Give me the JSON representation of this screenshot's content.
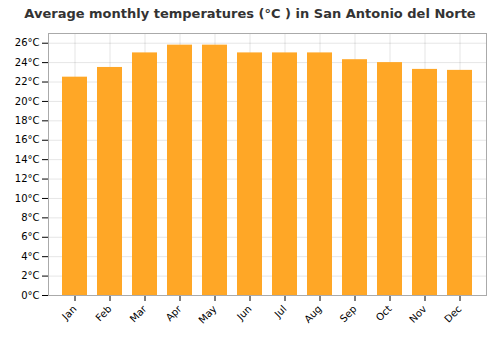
{
  "chart_data": {
    "type": "bar",
    "title": "Average monthly temperatures (°C ) in San Antonio del Norte",
    "categories": [
      "Jan",
      "Feb",
      "Mar",
      "Apr",
      "May",
      "Jun",
      "Jul",
      "Aug",
      "Sep",
      "Oct",
      "Nov",
      "Dec"
    ],
    "values": [
      22.5,
      23.5,
      25.0,
      25.8,
      25.8,
      25.0,
      25.0,
      25.0,
      24.3,
      24.0,
      23.3,
      23.2
    ],
    "color": "#FFA726",
    "ylim": [
      0,
      27
    ],
    "yticks": [
      {
        "value": 0,
        "label": "0°C"
      },
      {
        "value": 2,
        "label": "2°C"
      },
      {
        "value": 4,
        "label": "4°C"
      },
      {
        "value": 6,
        "label": "6°C"
      },
      {
        "value": 8,
        "label": "8°C"
      },
      {
        "value": 10,
        "label": "10°C"
      },
      {
        "value": 12,
        "label": "12°C"
      },
      {
        "value": 14,
        "label": "14°C"
      },
      {
        "value": 16,
        "label": "16°C"
      },
      {
        "value": 18,
        "label": "18°C"
      },
      {
        "value": 20,
        "label": "20°C"
      },
      {
        "value": 22,
        "label": "22°C"
      },
      {
        "value": 24,
        "label": "24°C"
      },
      {
        "value": 26,
        "label": "26°C"
      }
    ],
    "grid": true
  }
}
